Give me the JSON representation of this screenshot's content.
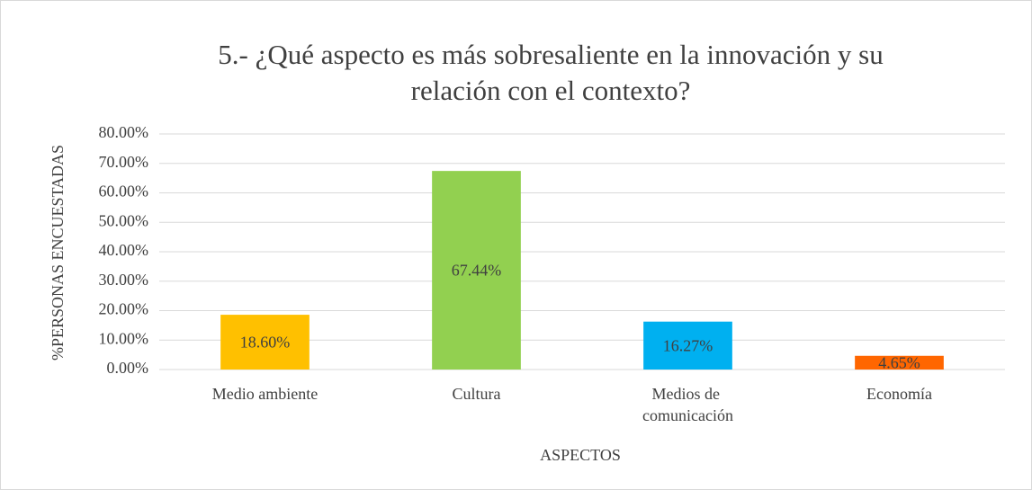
{
  "chart_data": {
    "type": "bar",
    "title": [
      "5.- ¿Qué aspecto es más sobresaliente en la innovación y su",
      "relación con el contexto?"
    ],
    "categories": [
      "Medio ambiente",
      "Cultura",
      "Medios de comunicación",
      "Economía"
    ],
    "values": [
      18.6,
      67.44,
      16.27,
      4.65
    ],
    "value_labels": [
      "18.60%",
      "67.44%",
      "16.27%",
      "4.65%"
    ],
    "colors": [
      "#ffc000",
      "#92d050",
      "#00b0f0",
      "#ff6600"
    ],
    "xlabel": "ASPECTOS",
    "ylabel": "%PERSONAS ENCUESTADAS",
    "ylim": [
      0,
      80
    ],
    "yticks": [
      {
        "value": 0,
        "label": "0.00%"
      },
      {
        "value": 10,
        "label": "10.00%"
      },
      {
        "value": 20,
        "label": "20.00%"
      },
      {
        "value": 30,
        "label": "30.00%"
      },
      {
        "value": 40,
        "label": "40.00%"
      },
      {
        "value": 50,
        "label": "50.00%"
      },
      {
        "value": 60,
        "label": "60.00%"
      },
      {
        "value": 70,
        "label": "70.00%"
      },
      {
        "value": 80,
        "label": "80.00%"
      }
    ],
    "grid": true
  }
}
